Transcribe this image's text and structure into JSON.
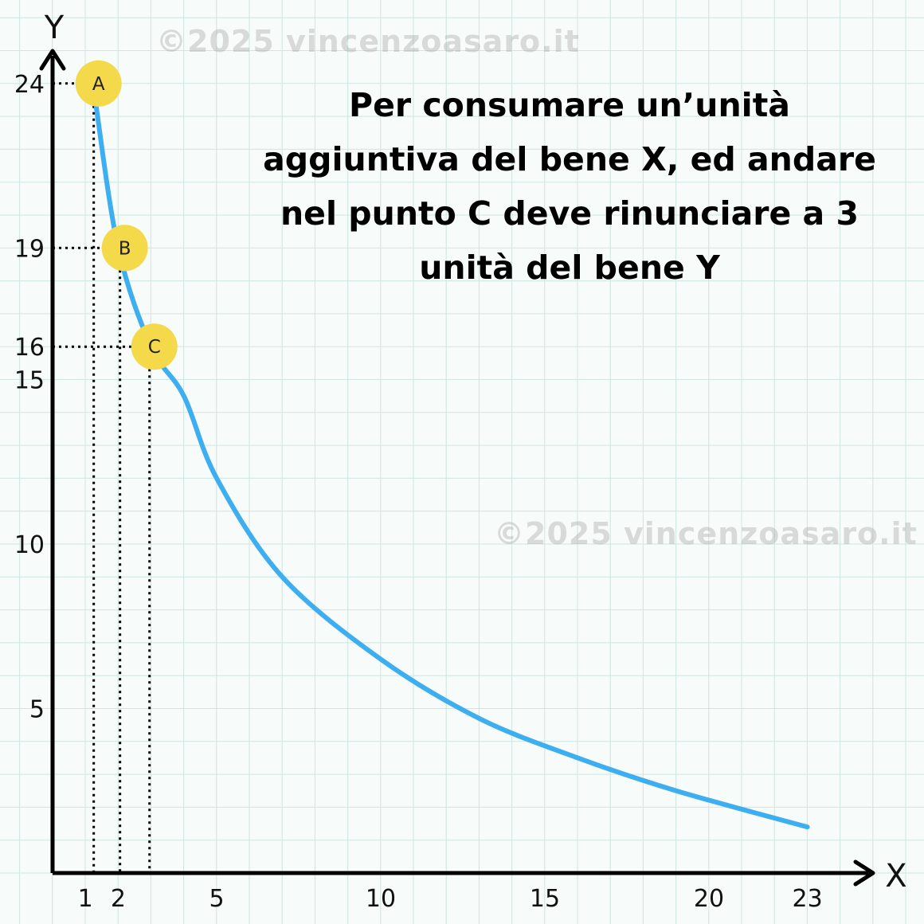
{
  "watermarks": [
    "©2025 vincenzoasaro.it",
    "©2025 vincenzoasaro.it"
  ],
  "title_lines": [
    "Per consumare un’unità",
    "aggiuntiva del bene X, ed andare",
    "nel punto C deve rinunciare a 3",
    "unità del bene Y"
  ],
  "chart_data": {
    "type": "line",
    "title": "Per consumare un’unità aggiuntiva del bene X, ed andare nel punto C deve rinunciare a 3 unità del bene Y",
    "xlabel": "X",
    "ylabel": "Y",
    "xlim": [
      0,
      25
    ],
    "ylim": [
      0,
      25
    ],
    "x_ticks": [
      1,
      2,
      5,
      10,
      15,
      20,
      23
    ],
    "y_ticks": [
      5,
      10,
      15,
      16,
      19,
      24
    ],
    "grid": true,
    "series": [
      {
        "x": [
          1.3,
          2,
          3,
          4,
          5,
          7,
          10,
          13,
          16,
          19,
          23
        ],
        "y": [
          23.5,
          19,
          16,
          14.5,
          12,
          9,
          6.5,
          4.7,
          3.5,
          2.5,
          1.4
        ]
      }
    ],
    "points": [
      {
        "label": "A",
        "x": 1.4,
        "y": 24
      },
      {
        "label": "B",
        "x": 2.2,
        "y": 19
      },
      {
        "label": "C",
        "x": 3.1,
        "y": 16
      }
    ]
  },
  "colors": {
    "curve": "#3daef0",
    "marker": "#f4d94a",
    "grid": "#cfe6e2",
    "axis": "#000000"
  }
}
